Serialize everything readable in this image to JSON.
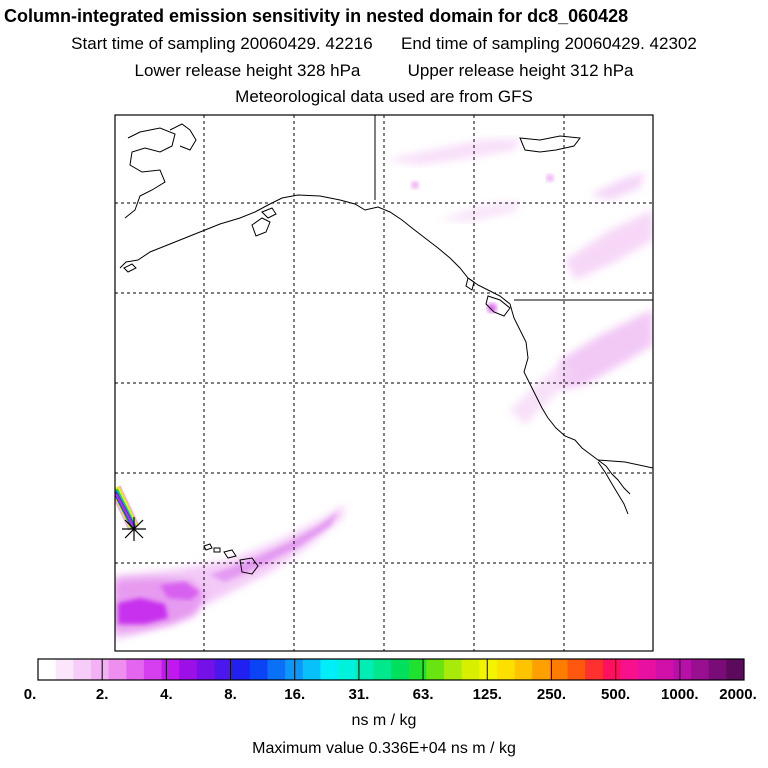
{
  "header": {
    "title": "Column-integrated emission sensitivity in nested domain for dc8_060428",
    "start_label": "Start time of sampling 20060429. 42216",
    "end_label": "End time of sampling 20060429. 42302",
    "lower_label": "Lower release height  328 hPa",
    "upper_label": "Upper release height  312 hPa",
    "met_label": "Meteorological data used are from GFS"
  },
  "colorbar": {
    "tick_labels": [
      "0.",
      "2.",
      "4.",
      "8.",
      "16.",
      "31.",
      "63.",
      "125.",
      "250.",
      "500.",
      "1000.",
      "2000."
    ],
    "colors": [
      "#ffffff",
      "#fce6fc",
      "#f8ccf8",
      "#f4b0f4",
      "#ee8eee",
      "#e466f0",
      "#d63ff0",
      "#c018ee",
      "#9a10e6",
      "#7410e8",
      "#4a18ec",
      "#2020f0",
      "#0a44f4",
      "#0a70f6",
      "#0c98f8",
      "#08c0fa",
      "#00eef8",
      "#00f2dc",
      "#00eeb4",
      "#00e88c",
      "#00e05c",
      "#20e030",
      "#6ae410",
      "#a8ea0a",
      "#d8f000",
      "#f4f400",
      "#fee000",
      "#fec400",
      "#fea000",
      "#fe7c00",
      "#fe5810",
      "#fe3030",
      "#fe1060",
      "#f8108c",
      "#e810a0",
      "#d010a8",
      "#b610a8",
      "#981090",
      "#7a0c78",
      "#5c0a5c"
    ],
    "units": "ns m / kg"
  },
  "footer": {
    "max_label": "Maximum value  0.336E+04 ns m / kg"
  },
  "map": {
    "release_marker": "asterisk-marker",
    "plume_color": "#e080f0"
  }
}
